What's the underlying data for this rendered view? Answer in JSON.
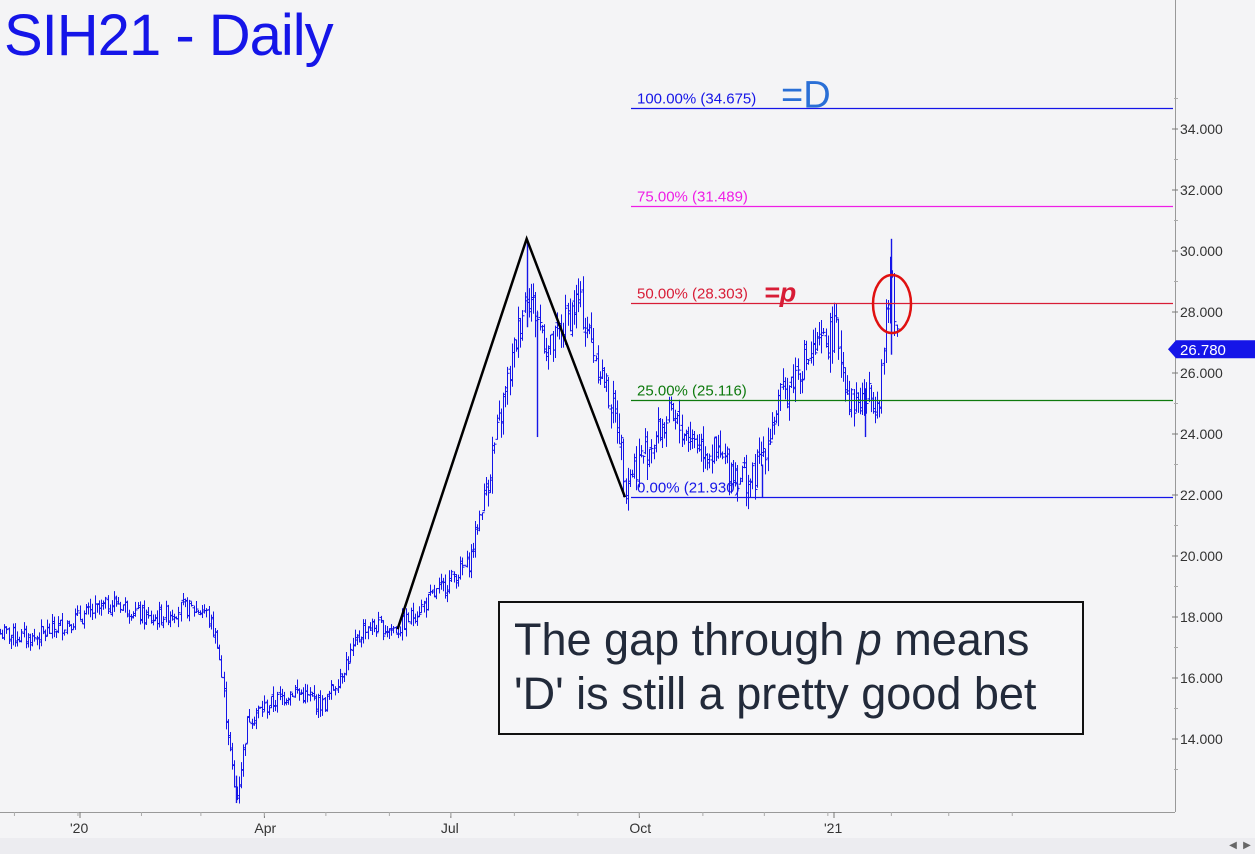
{
  "title": "SIH21 - Daily",
  "callout": {
    "line1_a": "The gap through ",
    "line1_p": "p",
    "line1_b": " means",
    "line2": "'D' is still a pretty good bet"
  },
  "chart_data": {
    "type": "ohlc",
    "title": "SIH21 - Daily",
    "x_tick_labels": [
      "'20",
      "Apr",
      "Jul",
      "Oct",
      "'21"
    ],
    "y_tick_labels": [
      "14.000",
      "16.000",
      "18.000",
      "20.000",
      "22.000",
      "24.000",
      "26.000",
      "28.000",
      "30.000",
      "32.000",
      "34.000"
    ],
    "ylim": [
      11.9,
      37.0
    ],
    "last_price": "26.780",
    "last_price_value": 26.78,
    "colors": {
      "bars": "#1515e8",
      "last_price_tag": "#1515e8",
      "fib_100": "#1515e8",
      "fib_75": "#ee1ee6",
      "fib_50": "#d81c36",
      "fib_25": "#0e7a0e",
      "fib_0": "#1515e8",
      "pattern": "#000000",
      "circle": "#e01010"
    },
    "fib_levels": [
      {
        "label": "100.00% (34.675)",
        "value": 34.675,
        "marker": "=D"
      },
      {
        "label": "75.00% (31.489)",
        "value": 31.489
      },
      {
        "label": "50.00% (28.303)",
        "value": 28.303,
        "marker": "=p"
      },
      {
        "label": "25.00% (25.116)",
        "value": 25.116
      },
      {
        "label": "0.00% (21.930)",
        "value": 21.93
      }
    ],
    "pattern_points": [
      {
        "date": "2020-06-05",
        "value": 17.6
      },
      {
        "date": "2020-08-07",
        "value": 30.4
      },
      {
        "date": "2020-09-24",
        "value": 21.93
      }
    ],
    "ohlc_anchors": [
      {
        "date": "2019-11-20",
        "value": 17.5
      },
      {
        "date": "2019-12-10",
        "value": 17.3
      },
      {
        "date": "2020-01-02",
        "value": 18.0
      },
      {
        "date": "2020-01-20",
        "value": 18.5
      },
      {
        "date": "2020-02-05",
        "value": 17.9
      },
      {
        "date": "2020-02-21",
        "value": 18.3
      },
      {
        "date": "2020-03-03",
        "value": 18.2
      },
      {
        "date": "2020-03-09",
        "value": 17.2
      },
      {
        "date": "2020-03-18",
        "value": 12.0
      },
      {
        "date": "2020-03-24",
        "value": 14.7
      },
      {
        "date": "2020-04-15",
        "value": 15.6
      },
      {
        "date": "2020-04-30",
        "value": 15.1
      },
      {
        "date": "2020-05-20",
        "value": 17.7
      },
      {
        "date": "2020-06-05",
        "value": 17.6
      },
      {
        "date": "2020-07-10",
        "value": 19.8
      },
      {
        "date": "2020-07-22",
        "value": 23.5
      },
      {
        "date": "2020-08-07",
        "value": 28.8
      },
      {
        "date": "2020-08-18",
        "value": 26.7
      },
      {
        "date": "2020-09-01",
        "value": 28.4
      },
      {
        "date": "2020-09-21",
        "value": 24.2
      },
      {
        "date": "2020-09-24",
        "value": 22.5
      },
      {
        "date": "2020-10-15",
        "value": 24.5
      },
      {
        "date": "2020-11-09",
        "value": 23.2
      },
      {
        "date": "2020-11-25",
        "value": 22.4
      },
      {
        "date": "2020-12-08",
        "value": 25.0
      },
      {
        "date": "2020-12-18",
        "value": 26.2
      },
      {
        "date": "2021-01-05",
        "value": 27.4
      },
      {
        "date": "2021-01-12",
        "value": 25.0
      },
      {
        "date": "2021-01-26",
        "value": 25.3
      },
      {
        "date": "2021-02-01",
        "value": 29.5
      },
      {
        "date": "2021-02-04",
        "value": 26.8
      }
    ],
    "annotations": [
      "=D",
      "=p"
    ]
  }
}
